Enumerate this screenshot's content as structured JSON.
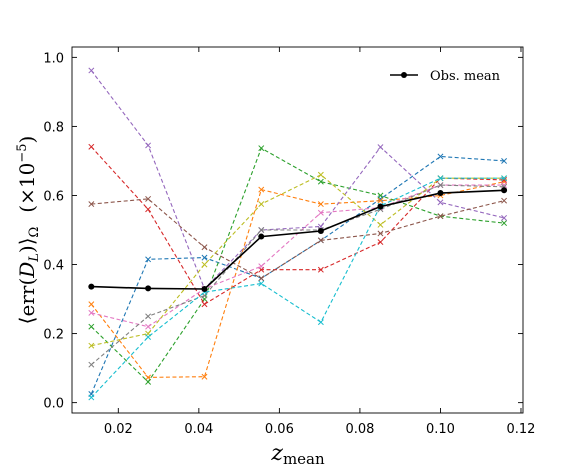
{
  "chart_data": {
    "type": "line",
    "xlabel": "z",
    "xlabel_sub": "mean",
    "ylabel_left": "⟨err(",
    "ylabel_D": "D",
    "ylabel_L": "L",
    "ylabel_right": ")⟩",
    "ylabel_omega": "Ω",
    "ylabel_mult": "(×10",
    "ylabel_exp": "−5",
    "ylabel_close": ")",
    "xlim": [
      0.0085,
      0.1205
    ],
    "ylim": [
      -0.03,
      1.03
    ],
    "xticks": [
      0.02,
      0.04,
      0.06,
      0.08,
      0.1,
      0.12
    ],
    "xtick_labels": [
      "0.02",
      "0.04",
      "0.06",
      "0.08",
      "0.10",
      "0.12"
    ],
    "yticks": [
      0.0,
      0.2,
      0.4,
      0.6,
      0.8,
      1.0
    ],
    "ytick_labels": [
      "0.0",
      "0.2",
      "0.4",
      "0.6",
      "0.8",
      "1.0"
    ],
    "legend": {
      "label": "Obs. mean",
      "placement": "top-right"
    },
    "x": [
      0.0133,
      0.0274,
      0.0414,
      0.0555,
      0.0703,
      0.0851,
      0.1,
      0.1158
    ],
    "mean_series": {
      "name": "Obs. mean",
      "color": "#000000",
      "values": [
        0.336,
        0.331,
        0.329,
        0.481,
        0.497,
        0.568,
        0.607,
        0.615
      ]
    },
    "series": [
      {
        "color": "#1f77b4",
        "values": [
          0.025,
          0.415,
          0.42,
          0.36,
          0.47,
          0.59,
          0.713,
          0.7
        ]
      },
      {
        "color": "#ff7f0e",
        "values": [
          0.285,
          0.073,
          0.075,
          0.617,
          0.575,
          0.585,
          0.6,
          0.64
        ]
      },
      {
        "color": "#2ca02c",
        "values": [
          0.22,
          0.06,
          0.3,
          0.737,
          0.64,
          0.6,
          0.54,
          0.52
        ]
      },
      {
        "color": "#d62728",
        "values": [
          0.741,
          0.56,
          0.285,
          0.385,
          0.385,
          0.465,
          0.65,
          0.645
        ]
      },
      {
        "color": "#9467bd",
        "values": [
          0.962,
          0.745,
          0.33,
          0.5,
          0.51,
          0.74,
          0.58,
          0.535
        ]
      },
      {
        "color": "#8c564b",
        "values": [
          0.575,
          0.59,
          0.45,
          0.36,
          0.47,
          0.49,
          0.54,
          0.585
        ]
      },
      {
        "color": "#e377c2",
        "values": [
          0.26,
          0.22,
          0.33,
          0.395,
          0.55,
          0.565,
          0.63,
          0.63
        ]
      },
      {
        "color": "#7f7f7f",
        "values": [
          0.11,
          0.25,
          0.31,
          0.5,
          0.5,
          0.56,
          0.63,
          0.625
        ]
      },
      {
        "color": "#bcbd22",
        "values": [
          0.165,
          0.2,
          0.4,
          0.575,
          0.66,
          0.515,
          0.65,
          0.65
        ]
      },
      {
        "color": "#17becf",
        "values": [
          0.015,
          0.19,
          0.32,
          0.345,
          0.233,
          0.57,
          0.65,
          0.65
        ]
      }
    ]
  }
}
